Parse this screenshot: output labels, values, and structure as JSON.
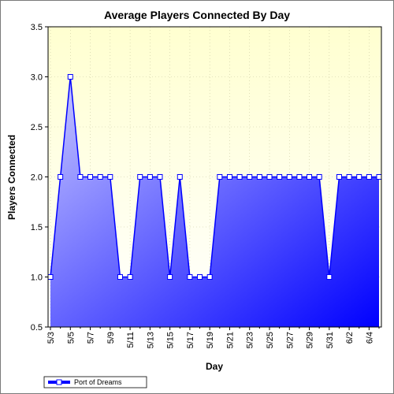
{
  "chart_data": {
    "type": "area",
    "title": "Average Players Connected By Day",
    "xlabel": "Day",
    "ylabel": "Players Connected",
    "ylim": [
      0.5,
      3.5
    ],
    "yticks": [
      "0.5",
      "1.0",
      "1.5",
      "2.0",
      "2.5",
      "3.0",
      "3.5"
    ],
    "x": [
      "5/3",
      "5/4",
      "5/5",
      "5/6",
      "5/7",
      "5/8",
      "5/9",
      "5/10",
      "5/11",
      "5/12",
      "5/13",
      "5/14",
      "5/15",
      "5/16",
      "5/17",
      "5/18",
      "5/19",
      "5/20",
      "5/21",
      "5/22",
      "5/23",
      "5/24",
      "5/25",
      "5/26",
      "5/27",
      "5/28",
      "5/29",
      "5/30",
      "5/31",
      "6/1",
      "6/2",
      "6/3",
      "6/4",
      "6/5"
    ],
    "xtick_labels": [
      "5/3",
      "5/5",
      "5/7",
      "5/9",
      "5/11",
      "5/13",
      "5/15",
      "5/17",
      "5/19",
      "5/21",
      "5/23",
      "5/25",
      "5/27",
      "5/29",
      "5/31",
      "6/2",
      "6/4"
    ],
    "series": [
      {
        "name": "Port of Dreams",
        "values": [
          1.0,
          2.0,
          3.0,
          2.0,
          2.0,
          2.0,
          2.0,
          1.0,
          1.0,
          2.0,
          2.0,
          2.0,
          1.0,
          2.0,
          1.0,
          1.0,
          1.0,
          2.0,
          2.0,
          2.0,
          2.0,
          2.0,
          2.0,
          2.0,
          2.0,
          2.0,
          2.0,
          2.0,
          1.0,
          2.0,
          2.0,
          2.0,
          2.0,
          2.0
        ]
      }
    ],
    "grid": true,
    "legend_position": "bottom-left",
    "colors": {
      "plot_background_top": "#ffffd0",
      "plot_background_bottom": "#ffffff",
      "area_top": "#c8c8ff",
      "area_bottom": "#0000ff",
      "line": "#0000ff",
      "marker_fill": "#ffffff",
      "grid": "#c8c8a0"
    }
  }
}
